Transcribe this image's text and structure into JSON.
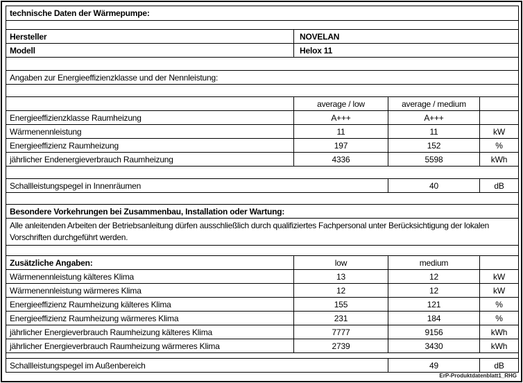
{
  "doc": {
    "footer_note": "ErP-Produktdatenblatt1_RHG"
  },
  "sections": {
    "tech": {
      "title": "technische Daten der Wärmepumpe:"
    },
    "identity": {
      "rows": [
        {
          "label": "Hersteller",
          "value": "NOVELAN"
        },
        {
          "label": "Modell",
          "value": "Helox 11"
        }
      ]
    },
    "efficiency": {
      "title": "Angaben zur Energieeffizienzklasse und der Nennleistung:",
      "col_headers": [
        "average / low",
        "average / medium"
      ],
      "rows": [
        {
          "label": "Energieeffizienzklasse Raumheizung",
          "v1": "A+++",
          "v2": "A+++",
          "unit": ""
        },
        {
          "label": "Wärmenennleistung",
          "v1": "11",
          "v2": "11",
          "unit": "kW"
        },
        {
          "label": "Energieeffizienz Raumheizung",
          "v1": "197",
          "v2": "152",
          "unit": "%"
        },
        {
          "label": "jährlicher Endenergieverbrauch Raumheizung",
          "v1": "4336",
          "v2": "5598",
          "unit": "kWh"
        }
      ],
      "sound_row": {
        "label": "Schallleistungspegel in Innenräumen",
        "value": "40",
        "unit": "dB"
      }
    },
    "precautions": {
      "title": "Besondere Vorkehrungen bei Zusammenbau, Installation oder Wartung:",
      "body": "Alle anleitenden Arbeiten der Betriebsanleitung dürfen ausschließlich durch qualifiziertes Fachpersonal unter Berücksichtigung der lokalen Vorschriften durchgeführt werden."
    },
    "additional": {
      "title": "Zusätzliche Angaben:",
      "col_headers": [
        "low",
        "medium"
      ],
      "rows": [
        {
          "label": "Wärmenennleistung kälteres Klima",
          "v1": "13",
          "v2": "12",
          "unit": "kW"
        },
        {
          "label": "Wärmenennleistung wärmeres Klima",
          "v1": "12",
          "v2": "12",
          "unit": "kW"
        },
        {
          "label": "Energieeffizienz Raumheizung kälteres Klima",
          "v1": "155",
          "v2": "121",
          "unit": "%"
        },
        {
          "label": "Energieeffizienz Raumheizung wärmeres Klima",
          "v1": "231",
          "v2": "184",
          "unit": "%"
        },
        {
          "label": "jährlicher Energieverbrauch Raumheizung kälteres Klima",
          "v1": "7777",
          "v2": "9156",
          "unit": "kWh"
        },
        {
          "label": "jährlicher Energieverbrauch Raumheizung wärmeres Klima",
          "v1": "2739",
          "v2": "3430",
          "unit": "kWh"
        }
      ],
      "sound_row": {
        "label": "Schallleistungspegel im Außenbereich",
        "value": "49",
        "unit": "dB"
      }
    }
  },
  "colors": {
    "border": "#000000",
    "background": "#ffffff",
    "text": "#000000"
  }
}
